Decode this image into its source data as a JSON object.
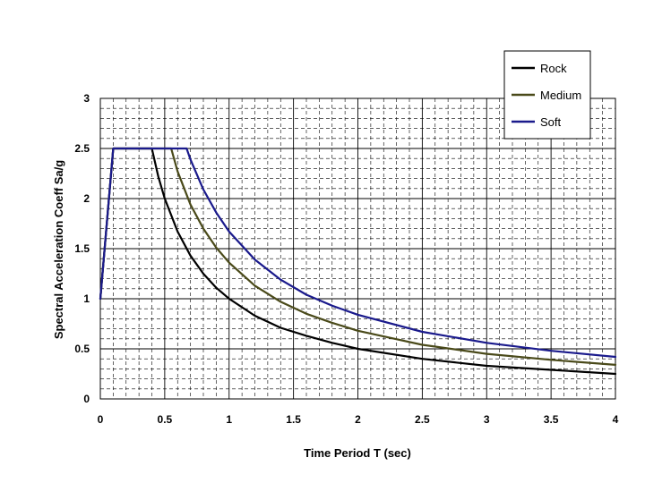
{
  "chart_data": {
    "type": "line",
    "title": "",
    "xlabel": "Time Period T (sec)",
    "ylabel": "Spectral Acceleration Coeff Sa/g",
    "xlim": [
      0,
      4
    ],
    "ylim": [
      0,
      3
    ],
    "x_ticks": [
      0,
      0.5,
      1,
      1.5,
      2,
      2.5,
      3,
      3.5,
      4
    ],
    "x_tick_labels": [
      "0",
      "0.5",
      "1",
      "1.5",
      "2",
      "2.5",
      "3",
      "3.5",
      "4"
    ],
    "y_ticks": [
      0,
      0.5,
      1,
      1.5,
      2,
      2.5,
      3
    ],
    "y_tick_labels": [
      "0",
      "0.5",
      "1",
      "1.5",
      "2",
      "2.5",
      "3"
    ],
    "grid": true,
    "legend_position": "top-right",
    "series": [
      {
        "name": "Rock",
        "color": "#000000",
        "points": [
          [
            0,
            1
          ],
          [
            0.1,
            2.5
          ],
          [
            0.4,
            2.5
          ],
          [
            0.45,
            2.22
          ],
          [
            0.5,
            2.0
          ],
          [
            0.6,
            1.67
          ],
          [
            0.7,
            1.43
          ],
          [
            0.8,
            1.25
          ],
          [
            0.9,
            1.11
          ],
          [
            1.0,
            1.0
          ],
          [
            1.2,
            0.83
          ],
          [
            1.4,
            0.71
          ],
          [
            1.6,
            0.63
          ],
          [
            1.8,
            0.56
          ],
          [
            2.0,
            0.5
          ],
          [
            2.5,
            0.4
          ],
          [
            3.0,
            0.33
          ],
          [
            3.5,
            0.29
          ],
          [
            4.0,
            0.25
          ]
        ]
      },
      {
        "name": "Medium",
        "color": "#4a4a1a",
        "points": [
          [
            0,
            1
          ],
          [
            0.1,
            2.5
          ],
          [
            0.55,
            2.5
          ],
          [
            0.6,
            2.27
          ],
          [
            0.7,
            1.94
          ],
          [
            0.8,
            1.7
          ],
          [
            0.9,
            1.51
          ],
          [
            1.0,
            1.36
          ],
          [
            1.2,
            1.13
          ],
          [
            1.4,
            0.97
          ],
          [
            1.6,
            0.85
          ],
          [
            1.8,
            0.76
          ],
          [
            2.0,
            0.68
          ],
          [
            2.5,
            0.54
          ],
          [
            3.0,
            0.45
          ],
          [
            3.5,
            0.39
          ],
          [
            4.0,
            0.34
          ]
        ]
      },
      {
        "name": "Soft",
        "color": "#1a1a8c",
        "points": [
          [
            0,
            1
          ],
          [
            0.1,
            2.5
          ],
          [
            0.67,
            2.5
          ],
          [
            0.7,
            2.39
          ],
          [
            0.8,
            2.09
          ],
          [
            0.9,
            1.86
          ],
          [
            1.0,
            1.67
          ],
          [
            1.2,
            1.39
          ],
          [
            1.4,
            1.19
          ],
          [
            1.6,
            1.04
          ],
          [
            1.8,
            0.93
          ],
          [
            2.0,
            0.84
          ],
          [
            2.5,
            0.67
          ],
          [
            3.0,
            0.56
          ],
          [
            3.5,
            0.48
          ],
          [
            4.0,
            0.42
          ]
        ]
      }
    ]
  }
}
